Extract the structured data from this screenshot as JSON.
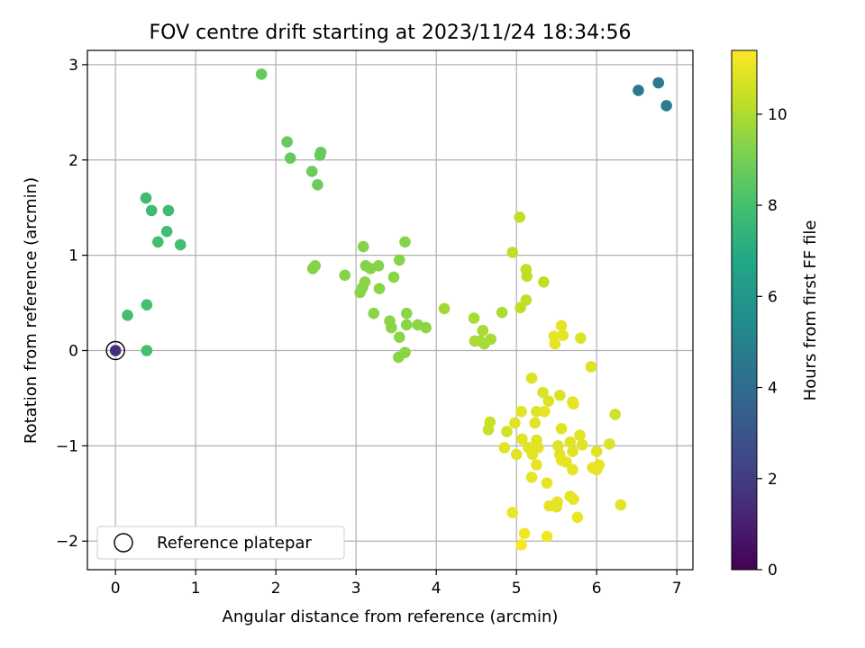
{
  "chart_data": {
    "type": "scatter",
    "title": "FOV centre drift starting at 2023/11/24 18:34:56",
    "xlabel": "Angular distance from reference (arcmin)",
    "ylabel": "Rotation from reference (arcmin)",
    "xlim": [
      -0.35,
      7.2
    ],
    "ylim": [
      -2.3,
      3.15
    ],
    "xticks": [
      0,
      1,
      2,
      3,
      4,
      5,
      6,
      7
    ],
    "yticks": [
      -2,
      -1,
      0,
      1,
      2,
      3
    ],
    "grid": true,
    "legend": {
      "placement": "lower-left",
      "entries": [
        "Reference platepar"
      ]
    },
    "colorbar": {
      "label": "Hours from first FF file",
      "colormap": "viridis",
      "range": [
        0,
        11.4
      ],
      "ticks": [
        0,
        2,
        4,
        6,
        8,
        10
      ]
    },
    "reference_point": {
      "x": 0,
      "y": 0,
      "hours": 1.5
    },
    "points": [
      {
        "x": 6.52,
        "y": 2.73,
        "h": 4.6
      },
      {
        "x": 6.77,
        "y": 2.81,
        "h": 4.6
      },
      {
        "x": 6.87,
        "y": 2.57,
        "h": 4.7
      },
      {
        "x": 0.38,
        "y": 1.6,
        "h": 7.8
      },
      {
        "x": 0.45,
        "y": 1.47,
        "h": 7.8
      },
      {
        "x": 0.66,
        "y": 1.47,
        "h": 7.8
      },
      {
        "x": 0.64,
        "y": 1.25,
        "h": 7.9
      },
      {
        "x": 0.53,
        "y": 1.14,
        "h": 7.9
      },
      {
        "x": 0.81,
        "y": 1.11,
        "h": 7.9
      },
      {
        "x": 0.15,
        "y": 0.37,
        "h": 8.0
      },
      {
        "x": 0.39,
        "y": 0.48,
        "h": 8.0
      },
      {
        "x": 0.39,
        "y": 0.0,
        "h": 8.0
      },
      {
        "x": 1.82,
        "y": 2.9,
        "h": 8.7
      },
      {
        "x": 2.14,
        "y": 2.19,
        "h": 8.7
      },
      {
        "x": 2.18,
        "y": 2.02,
        "h": 8.7
      },
      {
        "x": 2.56,
        "y": 2.08,
        "h": 8.7
      },
      {
        "x": 2.55,
        "y": 2.05,
        "h": 8.7
      },
      {
        "x": 2.45,
        "y": 1.88,
        "h": 8.8
      },
      {
        "x": 2.52,
        "y": 1.74,
        "h": 8.8
      },
      {
        "x": 3.09,
        "y": 1.09,
        "h": 9.3
      },
      {
        "x": 3.61,
        "y": 1.14,
        "h": 9.3
      },
      {
        "x": 2.46,
        "y": 0.86,
        "h": 9.3
      },
      {
        "x": 2.49,
        "y": 0.89,
        "h": 9.3
      },
      {
        "x": 2.86,
        "y": 0.79,
        "h": 9.3
      },
      {
        "x": 3.12,
        "y": 0.89,
        "h": 9.3
      },
      {
        "x": 3.18,
        "y": 0.86,
        "h": 9.3
      },
      {
        "x": 3.28,
        "y": 0.89,
        "h": 9.3
      },
      {
        "x": 3.54,
        "y": 0.95,
        "h": 9.3
      },
      {
        "x": 3.08,
        "y": 0.66,
        "h": 9.4
      },
      {
        "x": 3.11,
        "y": 0.72,
        "h": 9.4
      },
      {
        "x": 3.47,
        "y": 0.77,
        "h": 9.4
      },
      {
        "x": 3.05,
        "y": 0.61,
        "h": 9.4
      },
      {
        "x": 3.29,
        "y": 0.65,
        "h": 9.4
      },
      {
        "x": 3.22,
        "y": 0.39,
        "h": 9.4
      },
      {
        "x": 3.42,
        "y": 0.31,
        "h": 9.4
      },
      {
        "x": 3.44,
        "y": 0.24,
        "h": 9.4
      },
      {
        "x": 3.63,
        "y": 0.39,
        "h": 9.4
      },
      {
        "x": 3.63,
        "y": 0.27,
        "h": 9.4
      },
      {
        "x": 3.77,
        "y": 0.27,
        "h": 9.4
      },
      {
        "x": 3.87,
        "y": 0.24,
        "h": 9.4
      },
      {
        "x": 3.54,
        "y": 0.14,
        "h": 9.4
      },
      {
        "x": 3.61,
        "y": -0.02,
        "h": 9.4
      },
      {
        "x": 3.53,
        "y": -0.07,
        "h": 9.4
      },
      {
        "x": 4.1,
        "y": 0.44,
        "h": 9.8
      },
      {
        "x": 4.47,
        "y": 0.34,
        "h": 9.9
      },
      {
        "x": 4.58,
        "y": 0.21,
        "h": 9.9
      },
      {
        "x": 4.48,
        "y": 0.1,
        "h": 9.9
      },
      {
        "x": 4.55,
        "y": 0.1,
        "h": 9.9
      },
      {
        "x": 4.6,
        "y": 0.07,
        "h": 9.9
      },
      {
        "x": 4.68,
        "y": 0.12,
        "h": 9.9
      },
      {
        "x": 4.82,
        "y": 0.4,
        "h": 9.9
      },
      {
        "x": 5.04,
        "y": 1.4,
        "h": 10.3
      },
      {
        "x": 4.95,
        "y": 1.03,
        "h": 10.3
      },
      {
        "x": 5.12,
        "y": 0.85,
        "h": 10.3
      },
      {
        "x": 5.13,
        "y": 0.78,
        "h": 10.3
      },
      {
        "x": 5.34,
        "y": 0.72,
        "h": 10.3
      },
      {
        "x": 5.12,
        "y": 0.53,
        "h": 10.3
      },
      {
        "x": 5.05,
        "y": 0.45,
        "h": 10.3
      },
      {
        "x": 5.47,
        "y": 0.15,
        "h": 11.0
      },
      {
        "x": 5.56,
        "y": 0.26,
        "h": 11.0
      },
      {
        "x": 5.48,
        "y": 0.07,
        "h": 11.0
      },
      {
        "x": 5.58,
        "y": 0.16,
        "h": 11.0
      },
      {
        "x": 5.8,
        "y": 0.13,
        "h": 10.8
      },
      {
        "x": 5.93,
        "y": -0.17,
        "h": 10.8
      },
      {
        "x": 5.19,
        "y": -0.29,
        "h": 10.8
      },
      {
        "x": 5.33,
        "y": -0.44,
        "h": 10.8
      },
      {
        "x": 5.4,
        "y": -0.53,
        "h": 10.8
      },
      {
        "x": 5.54,
        "y": -0.47,
        "h": 10.8
      },
      {
        "x": 5.7,
        "y": -0.54,
        "h": 10.8
      },
      {
        "x": 5.71,
        "y": -0.56,
        "h": 11.0
      },
      {
        "x": 6.23,
        "y": -0.67,
        "h": 10.6
      },
      {
        "x": 5.06,
        "y": -0.64,
        "h": 10.9
      },
      {
        "x": 5.25,
        "y": -0.64,
        "h": 10.9
      },
      {
        "x": 5.35,
        "y": -0.64,
        "h": 11.0
      },
      {
        "x": 4.98,
        "y": -0.76,
        "h": 10.9
      },
      {
        "x": 5.23,
        "y": -0.76,
        "h": 10.9
      },
      {
        "x": 4.67,
        "y": -0.75,
        "h": 10.5
      },
      {
        "x": 4.65,
        "y": -0.83,
        "h": 10.5
      },
      {
        "x": 4.88,
        "y": -0.85,
        "h": 10.6
      },
      {
        "x": 5.56,
        "y": -0.82,
        "h": 10.9
      },
      {
        "x": 5.79,
        "y": -0.89,
        "h": 10.9
      },
      {
        "x": 5.07,
        "y": -0.93,
        "h": 10.9
      },
      {
        "x": 5.25,
        "y": -0.94,
        "h": 10.9
      },
      {
        "x": 5.52,
        "y": -1.0,
        "h": 10.9
      },
      {
        "x": 5.67,
        "y": -0.96,
        "h": 10.9
      },
      {
        "x": 5.82,
        "y": -0.99,
        "h": 10.9
      },
      {
        "x": 6.16,
        "y": -0.98,
        "h": 10.8
      },
      {
        "x": 4.85,
        "y": -1.02,
        "h": 10.9
      },
      {
        "x": 5.15,
        "y": -1.02,
        "h": 10.9
      },
      {
        "x": 5.27,
        "y": -1.02,
        "h": 10.9
      },
      {
        "x": 5.0,
        "y": -1.09,
        "h": 10.9
      },
      {
        "x": 5.2,
        "y": -1.09,
        "h": 10.9
      },
      {
        "x": 5.54,
        "y": -1.09,
        "h": 10.9
      },
      {
        "x": 5.7,
        "y": -1.06,
        "h": 10.9
      },
      {
        "x": 6.0,
        "y": -1.06,
        "h": 10.9
      },
      {
        "x": 5.56,
        "y": -1.15,
        "h": 11.0
      },
      {
        "x": 5.62,
        "y": -1.17,
        "h": 11.0
      },
      {
        "x": 5.25,
        "y": -1.2,
        "h": 11.0
      },
      {
        "x": 5.7,
        "y": -1.25,
        "h": 11.0
      },
      {
        "x": 5.95,
        "y": -1.23,
        "h": 11.0
      },
      {
        "x": 6.0,
        "y": -1.25,
        "h": 11.0
      },
      {
        "x": 6.03,
        "y": -1.2,
        "h": 11.0
      },
      {
        "x": 5.19,
        "y": -1.33,
        "h": 11.0
      },
      {
        "x": 5.38,
        "y": -1.39,
        "h": 11.0
      },
      {
        "x": 5.67,
        "y": -1.53,
        "h": 11.0
      },
      {
        "x": 5.71,
        "y": -1.56,
        "h": 11.0
      },
      {
        "x": 5.51,
        "y": -1.59,
        "h": 11.0
      },
      {
        "x": 5.41,
        "y": -1.63,
        "h": 11.0
      },
      {
        "x": 5.5,
        "y": -1.64,
        "h": 11.0
      },
      {
        "x": 6.3,
        "y": -1.62,
        "h": 10.9
      },
      {
        "x": 4.95,
        "y": -1.7,
        "h": 11.1
      },
      {
        "x": 5.76,
        "y": -1.75,
        "h": 11.1
      },
      {
        "x": 5.1,
        "y": -1.92,
        "h": 11.2
      },
      {
        "x": 5.38,
        "y": -1.95,
        "h": 11.2
      },
      {
        "x": 5.06,
        "y": -2.04,
        "h": 11.3
      }
    ]
  }
}
